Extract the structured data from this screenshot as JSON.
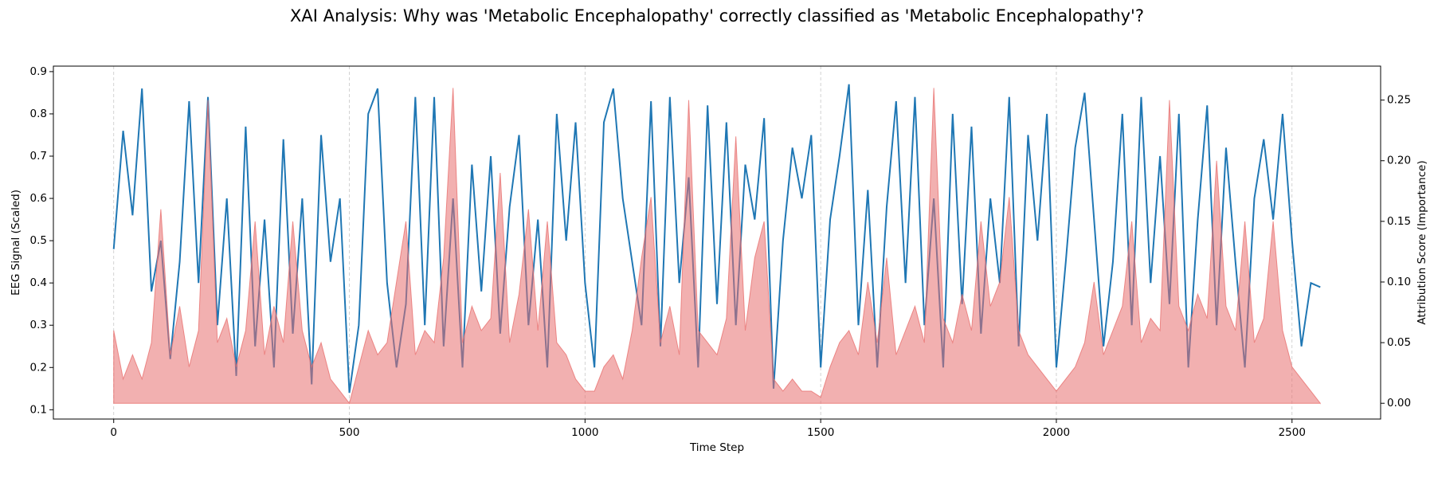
{
  "chart_data": {
    "type": "line",
    "title": "XAI Analysis: Why was 'Metabolic Encephalopathy' correctly classified as 'Metabolic Encephalopathy'?",
    "xlabel": "Time Step",
    "ylabel": "EEG Signal (Scaled)",
    "y2label": "Attribution Score (Importance)",
    "x": [
      0,
      20,
      40,
      60,
      80,
      100,
      120,
      140,
      160,
      180,
      200,
      220,
      240,
      260,
      280,
      300,
      320,
      340,
      360,
      380,
      400,
      420,
      440,
      460,
      480,
      500,
      520,
      540,
      560,
      580,
      600,
      620,
      640,
      660,
      680,
      700,
      720,
      740,
      760,
      780,
      800,
      820,
      840,
      860,
      880,
      900,
      920,
      940,
      960,
      980,
      1000,
      1020,
      1040,
      1060,
      1080,
      1100,
      1120,
      1140,
      1160,
      1180,
      1200,
      1220,
      1240,
      1260,
      1280,
      1300,
      1320,
      1340,
      1360,
      1380,
      1400,
      1420,
      1440,
      1460,
      1480,
      1500,
      1520,
      1540,
      1560,
      1580,
      1600,
      1620,
      1640,
      1660,
      1680,
      1700,
      1720,
      1740,
      1760,
      1780,
      1800,
      1820,
      1840,
      1860,
      1880,
      1900,
      1920,
      1940,
      1960,
      1980,
      2000,
      2020,
      2040,
      2060,
      2080,
      2100,
      2120,
      2140,
      2160,
      2180,
      2200,
      2220,
      2240,
      2260,
      2280,
      2300,
      2320,
      2340,
      2360,
      2380,
      2400,
      2420,
      2440,
      2460,
      2480,
      2500,
      2520,
      2540,
      2560
    ],
    "series": [
      {
        "style": "line",
        "color": "#1f77b4",
        "values": [
          0.48,
          0.76,
          0.56,
          0.86,
          0.38,
          0.5,
          0.22,
          0.45,
          0.83,
          0.4,
          0.84,
          0.3,
          0.6,
          0.18,
          0.77,
          0.25,
          0.55,
          0.2,
          0.74,
          0.28,
          0.6,
          0.16,
          0.75,
          0.45,
          0.6,
          0.14,
          0.3,
          0.8,
          0.86,
          0.4,
          0.2,
          0.35,
          0.84,
          0.3,
          0.84,
          0.25,
          0.6,
          0.2,
          0.68,
          0.38,
          0.7,
          0.28,
          0.58,
          0.75,
          0.3,
          0.55,
          0.2,
          0.8,
          0.5,
          0.78,
          0.4,
          0.2,
          0.78,
          0.86,
          0.6,
          0.45,
          0.3,
          0.83,
          0.25,
          0.84,
          0.4,
          0.65,
          0.2,
          0.82,
          0.35,
          0.78,
          0.3,
          0.68,
          0.55,
          0.79,
          0.15,
          0.5,
          0.72,
          0.6,
          0.75,
          0.2,
          0.55,
          0.7,
          0.87,
          0.3,
          0.62,
          0.2,
          0.58,
          0.83,
          0.4,
          0.84,
          0.3,
          0.6,
          0.2,
          0.8,
          0.35,
          0.77,
          0.28,
          0.6,
          0.4,
          0.84,
          0.25,
          0.75,
          0.5,
          0.8,
          0.2,
          0.45,
          0.72,
          0.85,
          0.55,
          0.25,
          0.45,
          0.8,
          0.3,
          0.84,
          0.4,
          0.7,
          0.35,
          0.8,
          0.2,
          0.55,
          0.82,
          0.3,
          0.72,
          0.45,
          0.2,
          0.6,
          0.74,
          0.55,
          0.8,
          0.5,
          0.25,
          0.4,
          0.39
        ]
      },
      {
        "style": "area",
        "axis": "y2",
        "color": "#e8706f",
        "values": [
          0.06,
          0.02,
          0.04,
          0.02,
          0.05,
          0.16,
          0.04,
          0.08,
          0.03,
          0.06,
          0.25,
          0.05,
          0.07,
          0.03,
          0.06,
          0.15,
          0.04,
          0.08,
          0.05,
          0.15,
          0.06,
          0.03,
          0.05,
          0.02,
          0.01,
          0.0,
          0.03,
          0.06,
          0.04,
          0.05,
          0.1,
          0.15,
          0.04,
          0.06,
          0.05,
          0.12,
          0.26,
          0.05,
          0.08,
          0.06,
          0.07,
          0.19,
          0.05,
          0.09,
          0.16,
          0.06,
          0.15,
          0.05,
          0.04,
          0.02,
          0.01,
          0.01,
          0.03,
          0.04,
          0.02,
          0.06,
          0.12,
          0.17,
          0.05,
          0.08,
          0.04,
          0.25,
          0.06,
          0.05,
          0.04,
          0.07,
          0.22,
          0.06,
          0.12,
          0.15,
          0.02,
          0.01,
          0.02,
          0.01,
          0.01,
          0.005,
          0.03,
          0.05,
          0.06,
          0.04,
          0.1,
          0.05,
          0.12,
          0.04,
          0.06,
          0.08,
          0.05,
          0.26,
          0.07,
          0.05,
          0.09,
          0.06,
          0.15,
          0.08,
          0.1,
          0.17,
          0.06,
          0.04,
          0.03,
          0.02,
          0.01,
          0.02,
          0.03,
          0.05,
          0.1,
          0.04,
          0.06,
          0.08,
          0.15,
          0.05,
          0.07,
          0.06,
          0.25,
          0.08,
          0.06,
          0.09,
          0.07,
          0.2,
          0.08,
          0.06,
          0.15,
          0.05,
          0.07,
          0.15,
          0.06,
          0.03,
          0.02,
          0.01,
          0.0
        ]
      }
    ],
    "xlim": [
      -128,
      2688
    ],
    "xticks": [
      0,
      500,
      1000,
      1500,
      2000,
      2500
    ],
    "ylim": [
      0.078,
      0.913
    ],
    "yticks": [
      0.1,
      0.2,
      0.3,
      0.4,
      0.5,
      0.6,
      0.7,
      0.8,
      0.9
    ],
    "y2lim": [
      -0.013,
      0.278
    ],
    "y2ticks": [
      {
        "value": 0,
        "label": "0.00"
      },
      {
        "value": 0.05,
        "label": "0.05"
      },
      {
        "value": 0.1,
        "label": "0.10"
      },
      {
        "value": 0.15,
        "label": "0.15"
      },
      {
        "value": 0.2,
        "label": "0.20"
      },
      {
        "value": 0.25,
        "label": "0.25"
      }
    ],
    "grid": "x"
  }
}
